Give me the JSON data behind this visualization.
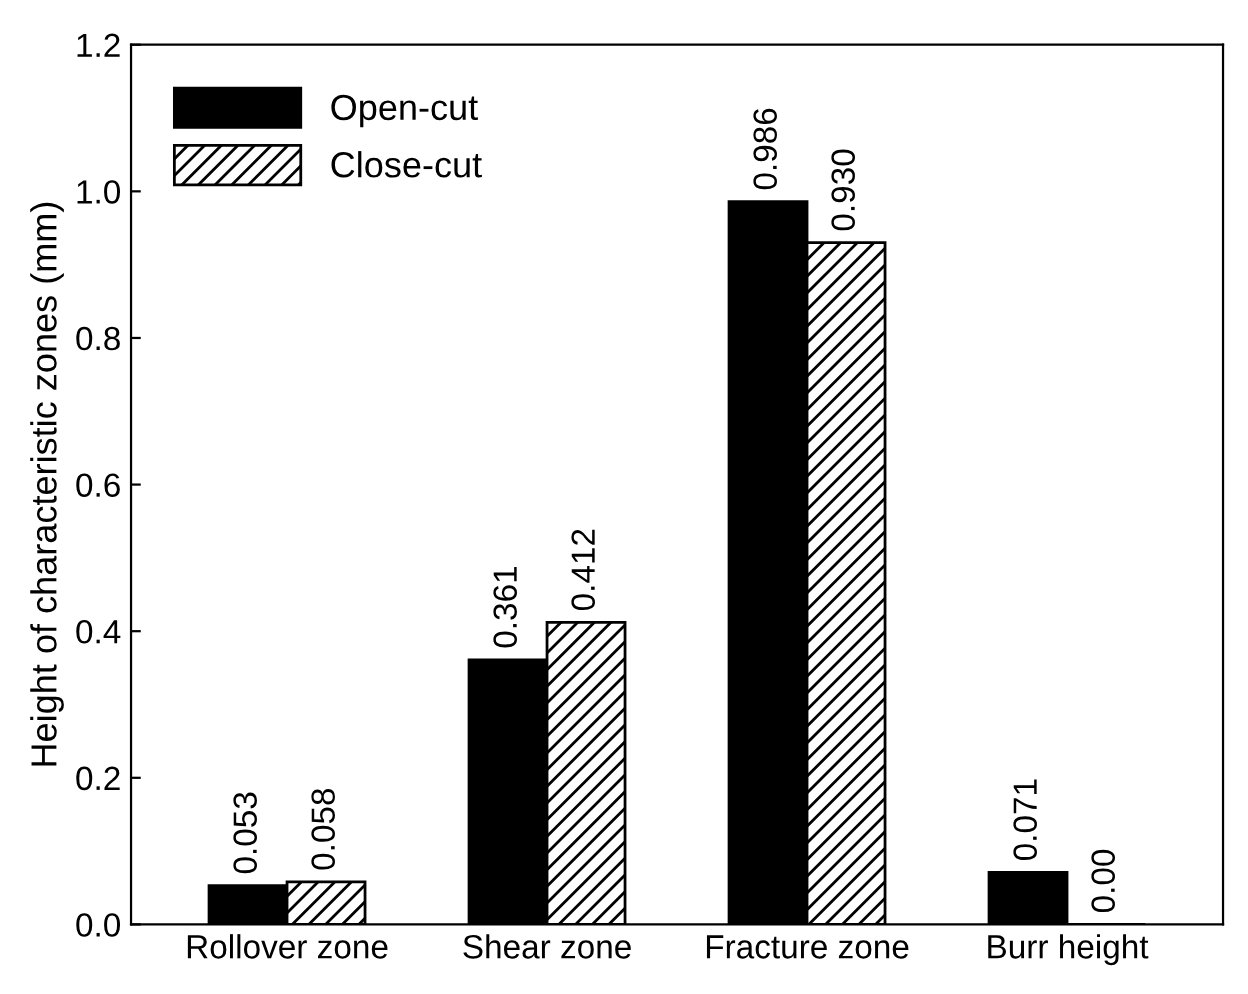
{
  "chart_data": {
    "type": "bar",
    "ylabel": "Height of characteristic zones (mm)",
    "categories": [
      "Rollover zone",
      "Shear zone",
      "Fracture zone",
      "Burr height"
    ],
    "series": [
      {
        "name": "Open-cut",
        "color": "#000000",
        "values": [
          0.053,
          0.361,
          0.986,
          0.071
        ],
        "value_labels": [
          "0.053",
          "0.361",
          "0.986",
          "0.071"
        ]
      },
      {
        "name": "Close-cut",
        "color": "#000000",
        "values": [
          0.058,
          0.412,
          0.93,
          0
        ],
        "value_labels": [
          "0.058",
          "0.412",
          "0.930",
          "0.00"
        ]
      }
    ],
    "ylim": [
      0,
      1.2
    ],
    "yticks": [
      {
        "value": 0,
        "label": "0.0"
      },
      {
        "value": 0.2,
        "label": "0.2"
      },
      {
        "value": 0.4,
        "label": "0.4"
      },
      {
        "value": 0.6,
        "label": "0.6"
      },
      {
        "value": 0.8,
        "label": "0.8"
      },
      {
        "value": 1.0,
        "label": "1.0"
      },
      {
        "value": 1.2,
        "label": "1.2"
      }
    ],
    "legend": "top left",
    "grid": false
  }
}
